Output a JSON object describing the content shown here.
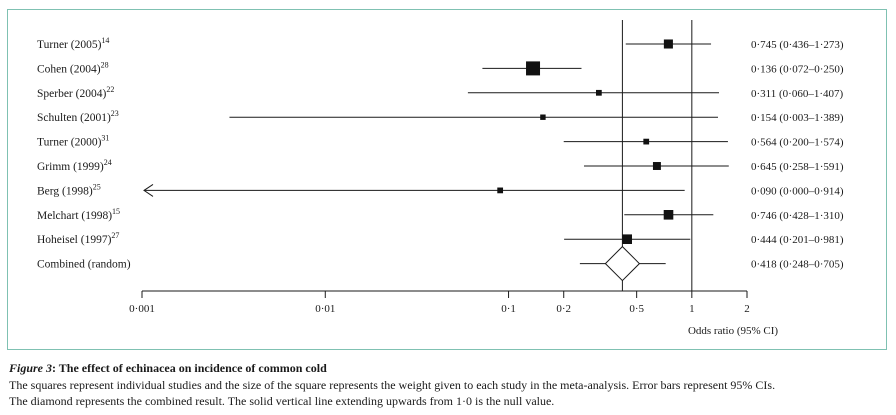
{
  "chart_data": {
    "type": "forest",
    "xscale": "log",
    "xlim": [
      0.001,
      2
    ],
    "null_value": 1.0,
    "xticks": [
      {
        "value": 0.001,
        "label": "0·001"
      },
      {
        "value": 0.01,
        "label": "0·01"
      },
      {
        "value": 0.1,
        "label": "0·1"
      },
      {
        "value": 0.2,
        "label": "0·2"
      },
      {
        "value": 0.5,
        "label": "0·5"
      },
      {
        "value": 1,
        "label": "1"
      },
      {
        "value": 2,
        "label": "2"
      }
    ],
    "xlabel": "Odds ratio (95% CI)",
    "studies": [
      {
        "name": "Turner (2005)",
        "ref": "14",
        "or": 0.745,
        "lo": 0.436,
        "hi": 1.273,
        "weight": 0.55,
        "label": "0·745 (0·436–1·273)"
      },
      {
        "name": "Cohen (2004)",
        "ref": "28",
        "or": 0.136,
        "lo": 0.072,
        "hi": 0.25,
        "weight": 1.0,
        "label": "0·136 (0·072–0·250)"
      },
      {
        "name": "Sperber (2004)",
        "ref": "22",
        "or": 0.311,
        "lo": 0.06,
        "hi": 1.407,
        "weight": 0.25,
        "label": "0·311 (0·060–1·407)"
      },
      {
        "name": "Schulten (2001)",
        "ref": "23",
        "or": 0.154,
        "lo": 0.003,
        "hi": 1.389,
        "weight": 0.22,
        "label": "0·154 (0·003–1·389)"
      },
      {
        "name": "Turner (2000)",
        "ref": "31",
        "or": 0.564,
        "lo": 0.2,
        "hi": 1.574,
        "weight": 0.25,
        "label": "0·564 (0·200–1·574)"
      },
      {
        "name": "Grimm (1999)",
        "ref": "24",
        "or": 0.645,
        "lo": 0.258,
        "hi": 1.591,
        "weight": 0.45,
        "label": "0·645 (0·258–1·591)"
      },
      {
        "name": "Berg (1998)",
        "ref": "25",
        "or": 0.09,
        "lo": 0.0,
        "hi": 0.914,
        "weight": 0.25,
        "label": "0·090 (0·000–0·914)",
        "lo_arrow": true
      },
      {
        "name": "Melchart (1998)",
        "ref": "15",
        "or": 0.746,
        "lo": 0.428,
        "hi": 1.31,
        "weight": 0.6,
        "label": "0·746 (0·428–1·310)"
      },
      {
        "name": "Hoheisel (1997)",
        "ref": "27",
        "or": 0.444,
        "lo": 0.201,
        "hi": 0.981,
        "weight": 0.6,
        "label": "0·444 (0·201–0·981)"
      }
    ],
    "combined": {
      "name": "Combined (random)",
      "or": 0.418,
      "lo": 0.248,
      "hi": 0.705,
      "label": "0·418 (0·248–0·705)"
    }
  },
  "caption": {
    "figure_label": "Figure 3",
    "title": ": The effect of echinacea on incidence of common cold",
    "line1": "The squares represent individual studies and the size of the square represents the weight given to each study in the meta-analysis. Error bars represent 95% CIs.",
    "line2": "The diamond represents the combined result. The solid vertical line extending upwards from 1·0 is the null value."
  }
}
